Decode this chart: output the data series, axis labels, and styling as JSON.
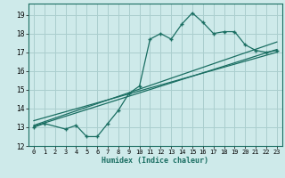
{
  "xlabel": "Humidex (Indice chaleur)",
  "bg_color": "#ceeaea",
  "grid_color": "#aacece",
  "line_color": "#1a6e62",
  "xlim": [
    -0.5,
    23.5
  ],
  "ylim": [
    12,
    19.6
  ],
  "xticks": [
    0,
    1,
    2,
    3,
    4,
    5,
    6,
    7,
    8,
    9,
    10,
    11,
    12,
    13,
    14,
    15,
    16,
    17,
    18,
    19,
    20,
    21,
    22,
    23
  ],
  "yticks": [
    12,
    13,
    14,
    15,
    16,
    17,
    18,
    19
  ],
  "main_x": [
    0,
    1,
    3,
    4,
    5,
    6,
    7,
    8,
    9,
    10,
    11,
    12,
    13,
    14,
    15,
    16,
    17,
    18,
    19,
    20,
    21,
    22,
    23
  ],
  "main_y": [
    13.0,
    13.2,
    12.9,
    13.1,
    12.5,
    12.5,
    13.2,
    13.9,
    14.8,
    15.2,
    17.7,
    18.0,
    17.7,
    18.5,
    19.1,
    18.6,
    18.0,
    18.1,
    18.1,
    17.4,
    17.1,
    17.0,
    17.1
  ],
  "line1_x": [
    0,
    23
  ],
  "line1_y": [
    13.05,
    17.15
  ],
  "line2_x": [
    0,
    23
  ],
  "line2_y": [
    13.1,
    17.55
  ],
  "line3_x": [
    0,
    23
  ],
  "line3_y": [
    13.35,
    17.0
  ]
}
